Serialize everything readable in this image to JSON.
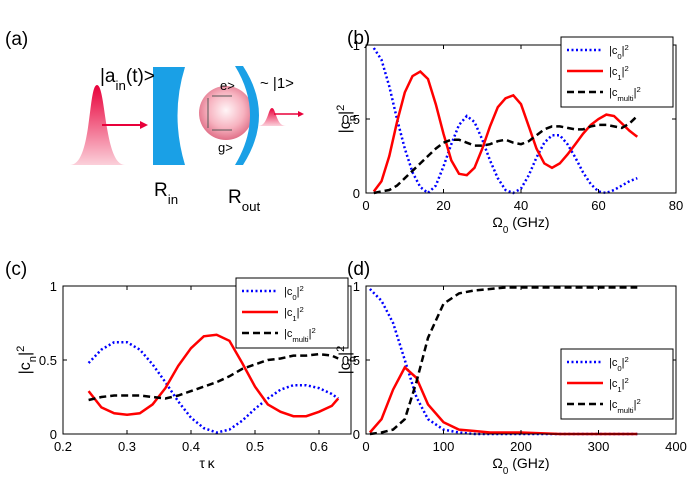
{
  "diagram": {
    "panel_label": "(a)",
    "input_state": "|ain(t)>",
    "output_state": "~ |1>",
    "excited": "e>",
    "ground": "g>",
    "mirror_in": "Rin",
    "mirror_out": "Rout"
  },
  "chart_data": [
    {
      "type": "line",
      "panel_label": "(b)",
      "xlabel": "Ω0 (GHz)",
      "ylabel": "|cn|2",
      "legend": "upper right",
      "x": [
        2,
        4,
        6,
        8,
        10,
        12,
        14,
        16,
        18,
        20,
        22,
        24,
        26,
        28,
        30,
        32,
        34,
        36,
        38,
        40,
        42,
        44,
        46,
        48,
        50,
        52,
        54,
        56,
        58,
        60,
        62,
        64,
        66,
        68,
        70
      ],
      "series": [
        {
          "name": "|c0|2",
          "color": "#0000ff",
          "dash": "dotted",
          "values": [
            0.98,
            0.9,
            0.72,
            0.5,
            0.3,
            0.14,
            0.04,
            0,
            0.05,
            0.18,
            0.33,
            0.46,
            0.52,
            0.48,
            0.36,
            0.22,
            0.1,
            0.02,
            0,
            0.03,
            0.12,
            0.24,
            0.34,
            0.39,
            0.39,
            0.33,
            0.24,
            0.14,
            0.06,
            0.01,
            0,
            0.02,
            0.05,
            0.08,
            0.1
          ]
        },
        {
          "name": "|c1|2",
          "color": "#ff0000",
          "dash": "solid",
          "values": [
            0.01,
            0.08,
            0.25,
            0.48,
            0.68,
            0.79,
            0.82,
            0.77,
            0.6,
            0.4,
            0.22,
            0.13,
            0.12,
            0.17,
            0.3,
            0.45,
            0.58,
            0.64,
            0.66,
            0.6,
            0.45,
            0.3,
            0.2,
            0.17,
            0.2,
            0.26,
            0.33,
            0.4,
            0.46,
            0.5,
            0.53,
            0.52,
            0.47,
            0.42,
            0.38
          ]
        },
        {
          "name": "|cmulti|2",
          "color": "#000000",
          "dash": "dashed",
          "values": [
            0,
            0.01,
            0.02,
            0.05,
            0.1,
            0.15,
            0.2,
            0.25,
            0.3,
            0.34,
            0.36,
            0.36,
            0.34,
            0.32,
            0.32,
            0.33,
            0.35,
            0.36,
            0.34,
            0.33,
            0.35,
            0.39,
            0.43,
            0.45,
            0.45,
            0.44,
            0.43,
            0.43,
            0.45,
            0.46,
            0.46,
            0.45,
            0.44,
            0.47,
            0.52
          ]
        }
      ],
      "xlim": [
        0,
        80
      ],
      "ylim": [
        0,
        1
      ],
      "xticks": [
        0,
        20,
        40,
        60,
        80
      ],
      "yticks": [
        0,
        0.5,
        1
      ]
    },
    {
      "type": "line",
      "panel_label": "(c)",
      "xlabel": "τ κ",
      "ylabel": "|cn|2",
      "legend": "upper right",
      "x": [
        0.24,
        0.26,
        0.28,
        0.3,
        0.32,
        0.34,
        0.36,
        0.38,
        0.4,
        0.42,
        0.44,
        0.46,
        0.48,
        0.5,
        0.52,
        0.54,
        0.56,
        0.58,
        0.6,
        0.62,
        0.63
      ],
      "series": [
        {
          "name": "|c0|2",
          "color": "#0000ff",
          "dash": "dotted",
          "values": [
            0.48,
            0.57,
            0.62,
            0.62,
            0.57,
            0.47,
            0.35,
            0.22,
            0.11,
            0.04,
            0.01,
            0.03,
            0.09,
            0.17,
            0.24,
            0.3,
            0.33,
            0.33,
            0.31,
            0.27,
            0.24
          ]
        },
        {
          "name": "|c1|2",
          "color": "#ff0000",
          "dash": "solid",
          "values": [
            0.29,
            0.18,
            0.14,
            0.13,
            0.14,
            0.2,
            0.31,
            0.46,
            0.58,
            0.66,
            0.67,
            0.63,
            0.48,
            0.32,
            0.2,
            0.15,
            0.12,
            0.12,
            0.15,
            0.19,
            0.24
          ]
        },
        {
          "name": "|cmulti|2",
          "color": "#000000",
          "dash": "dashed",
          "values": [
            0.23,
            0.25,
            0.26,
            0.26,
            0.26,
            0.25,
            0.24,
            0.26,
            0.29,
            0.32,
            0.35,
            0.39,
            0.44,
            0.47,
            0.5,
            0.51,
            0.53,
            0.53,
            0.54,
            0.53,
            0.51
          ]
        }
      ],
      "xlim": [
        0.2,
        0.65
      ],
      "ylim": [
        0,
        1
      ],
      "xticks": [
        0.2,
        0.3,
        0.4,
        0.5,
        0.6
      ],
      "yticks": [
        0,
        0.5,
        1
      ]
    },
    {
      "type": "line",
      "panel_label": "(d)",
      "xlabel": "Ω0 (GHz)",
      "ylabel": "|cn|2",
      "legend": "lower right",
      "x": [
        5,
        20,
        35,
        50,
        65,
        80,
        100,
        120,
        140,
        160,
        180,
        200,
        250,
        300,
        350
      ],
      "series": [
        {
          "name": "|c0|2",
          "color": "#0000ff",
          "dash": "dotted",
          "values": [
            0.98,
            0.9,
            0.75,
            0.5,
            0.25,
            0.1,
            0.03,
            0.01,
            0,
            0,
            0,
            0,
            0,
            0,
            0
          ]
        },
        {
          "name": "|c1|2",
          "color": "#ff0000",
          "dash": "solid",
          "values": [
            0.01,
            0.1,
            0.3,
            0.45,
            0.38,
            0.2,
            0.08,
            0.03,
            0.02,
            0.01,
            0.01,
            0.01,
            0,
            0,
            0
          ]
        },
        {
          "name": "|cmulti|2",
          "color": "#000000",
          "dash": "dashed",
          "values": [
            0,
            0.01,
            0.03,
            0.1,
            0.35,
            0.65,
            0.88,
            0.95,
            0.97,
            0.98,
            0.99,
            0.99,
            0.99,
            0.99,
            0.99
          ]
        }
      ],
      "xlim": [
        0,
        400
      ],
      "ylim": [
        0,
        1
      ],
      "xticks": [
        0,
        100,
        200,
        300,
        400
      ],
      "yticks": [
        0,
        0.5,
        1
      ]
    }
  ]
}
